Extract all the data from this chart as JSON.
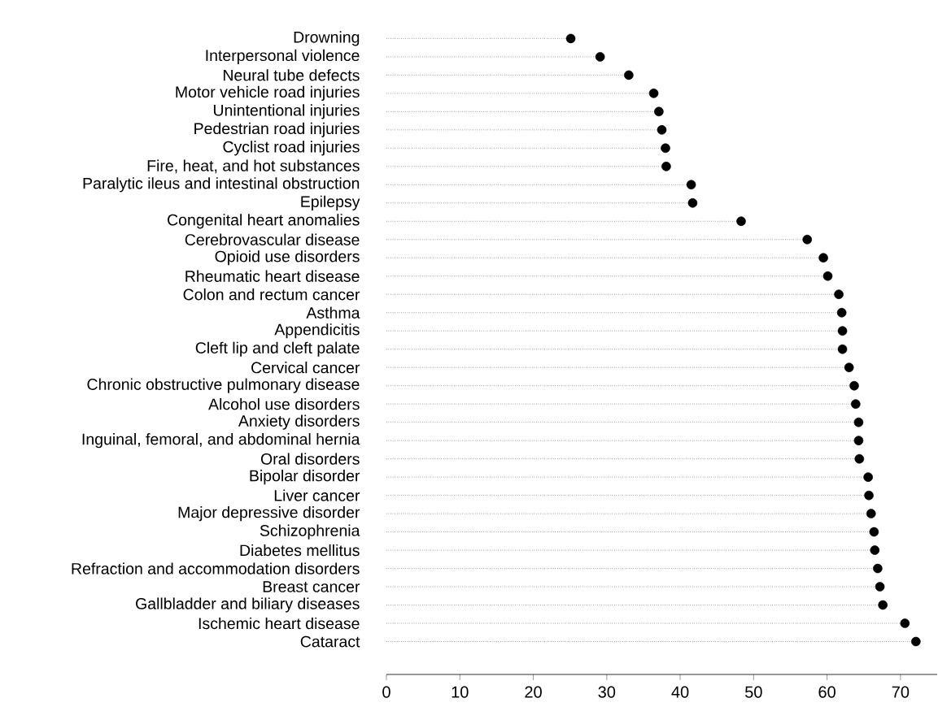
{
  "chart_data": {
    "type": "lollipop",
    "orientation": "horizontal",
    "color": "#000000",
    "marker": "circle",
    "line_style": "dotted",
    "categories": [
      "Drowning",
      "Interpersonal violence",
      "Neural tube defects",
      "Motor vehicle road injuries",
      "Unintentional injuries",
      "Pedestrian road injuries",
      "Cyclist road injuries",
      "Fire, heat, and hot substances",
      "Paralytic ileus and intestinal obstruction",
      "Epilepsy",
      "Congenital heart anomalies",
      "Cerebrovascular disease",
      "Opioid use disorders",
      "Rheumatic heart disease",
      "Colon and rectum cancer",
      "Asthma",
      "Appendicitis",
      "Cleft lip and cleft palate",
      "Cervical cancer",
      "Chronic obstructive pulmonary disease",
      "Alcohol use disorders",
      "Anxiety disorders",
      "Inguinal, femoral, and abdominal hernia",
      "Oral disorders",
      "Bipolar disorder",
      "Liver cancer",
      "Major depressive disorder",
      "Schizophrenia",
      "Diabetes mellitus",
      "Refraction and accommodation disorders",
      "Breast cancer",
      "Gallbladder and biliary diseases",
      "Ischemic heart disease",
      "Cataract"
    ],
    "values": [
      25.1,
      29.1,
      33.0,
      36.4,
      37.1,
      37.5,
      38.0,
      38.1,
      41.5,
      41.7,
      48.3,
      57.3,
      59.5,
      60.1,
      61.6,
      62.0,
      62.1,
      62.1,
      63.0,
      63.7,
      63.9,
      64.3,
      64.3,
      64.4,
      65.6,
      65.7,
      66.0,
      66.4,
      66.5,
      66.9,
      67.2,
      67.6,
      70.6,
      72.1
    ],
    "xlim": [
      0,
      75
    ],
    "xticks": [
      0,
      10,
      20,
      30,
      40,
      50,
      60,
      70
    ]
  }
}
